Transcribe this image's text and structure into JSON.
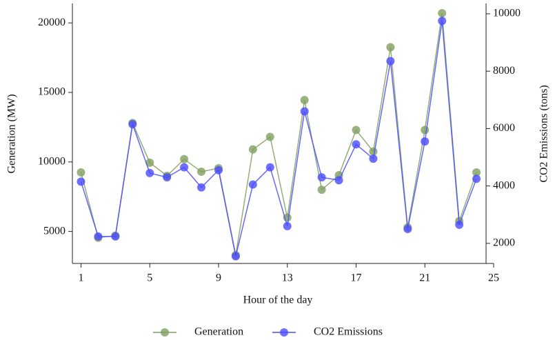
{
  "chart_data": {
    "type": "line",
    "x_label": "Hour of the day",
    "y_label": "Generation (MW)",
    "y2_label": "CO2 Emissions (tons)",
    "x": [
      1,
      2,
      3,
      4,
      5,
      6,
      7,
      8,
      9,
      10,
      11,
      12,
      13,
      14,
      15,
      16,
      17,
      18,
      19,
      20,
      21,
      22,
      23,
      24
    ],
    "xlim": [
      0.5,
      25
    ],
    "xticks": [
      1,
      5,
      9,
      13,
      17,
      21,
      25
    ],
    "ylim": [
      2700,
      21400
    ],
    "yticks": [
      5000,
      10000,
      15000,
      20000
    ],
    "y2lim": [
      1300,
      10360
    ],
    "y2ticks": [
      2000,
      4000,
      6000,
      8000,
      10000
    ],
    "grid": false,
    "legend": "bottom",
    "series": [
      {
        "name": "Generation",
        "color": "#7f9f5f",
        "axis": "y",
        "values": [
          9250,
          4550,
          4700,
          12800,
          9950,
          9000,
          10200,
          9300,
          9550,
          3300,
          10900,
          11800,
          6000,
          14450,
          8000,
          9050,
          12300,
          10750,
          18250,
          5300,
          12300,
          20700,
          5750,
          9250
        ]
      },
      {
        "name": "CO2 Emissions",
        "color": "#4b4bff",
        "axis": "y2",
        "values": [
          4150,
          2240,
          2240,
          6150,
          4450,
          4300,
          4650,
          3950,
          4550,
          1550,
          4050,
          4650,
          2600,
          6600,
          4300,
          4200,
          5450,
          4950,
          8350,
          2500,
          5550,
          9750,
          2650,
          4250
        ]
      }
    ]
  }
}
